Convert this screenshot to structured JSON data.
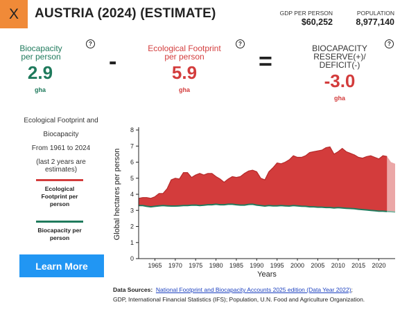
{
  "header": {
    "close_label": "X",
    "title": "AUSTRIA (2024) (ESTIMATE)",
    "gdp_label": "GDP PER PERSON",
    "gdp_value": "$60,252",
    "population_label": "POPULATION",
    "population_value": "8,977,140"
  },
  "metrics": {
    "biocapacity": {
      "label_line1": "Biocapacity",
      "label_line2": "per person",
      "value": "2.9",
      "unit": "gha",
      "help": "?"
    },
    "operator_minus": "-",
    "footprint": {
      "label_line1": "Ecological Footprint",
      "label_line2": "per person",
      "value": "5.9",
      "unit": "gha",
      "help": "?"
    },
    "operator_equals": "=",
    "reserve": {
      "label_line1": "BIOCAPACITY",
      "label_line2": "RESERVE(+)/",
      "label_line3": "DEFICIT(-)",
      "value": "-3.0",
      "unit": "gha",
      "help": "?"
    },
    "colors": {
      "green": "#1f7a5c",
      "red": "#d33c3c"
    }
  },
  "side_panel": {
    "line1": "Ecological Footprint and",
    "line2": "Biocapacity",
    "line3": "From 1961 to 2024",
    "line4": "(last 2 years are estimates)",
    "legend": [
      {
        "line1": "Ecological",
        "line2": "Footprint per",
        "line3": "person",
        "color": "#d33c3c"
      },
      {
        "line1": "Biocapacity per",
        "line2": "person",
        "color": "#1f7a5c"
      }
    ],
    "learn_more": "Learn More",
    "learn_more_color": "#2196f3"
  },
  "chart_data": {
    "type": "area",
    "xlabel": "Years",
    "ylabel": "Global hectares per person",
    "ylim": [
      0,
      8
    ],
    "xlim": [
      1961,
      2024
    ],
    "x_ticks": [
      1965,
      1970,
      1975,
      1980,
      1985,
      1990,
      1995,
      2000,
      2005,
      2010,
      2015,
      2020
    ],
    "y_ticks": [
      0,
      1,
      2,
      3,
      4,
      5,
      6,
      7,
      8
    ],
    "estimate_from_year": 2022,
    "series": [
      {
        "name": "Ecological Footprint per person",
        "color": "#d33c3c",
        "x": [
          1961,
          1962,
          1963,
          1964,
          1965,
          1966,
          1967,
          1968,
          1969,
          1970,
          1971,
          1972,
          1973,
          1974,
          1975,
          1976,
          1977,
          1978,
          1979,
          1980,
          1981,
          1982,
          1983,
          1984,
          1985,
          1986,
          1987,
          1988,
          1989,
          1990,
          1991,
          1992,
          1993,
          1994,
          1995,
          1996,
          1997,
          1998,
          1999,
          2000,
          2001,
          2002,
          2003,
          2004,
          2005,
          2006,
          2007,
          2008,
          2009,
          2010,
          2011,
          2012,
          2013,
          2014,
          2015,
          2016,
          2017,
          2018,
          2019,
          2020,
          2021,
          2022,
          2023,
          2024
        ],
        "values": [
          3.75,
          3.8,
          3.8,
          3.75,
          3.85,
          4.05,
          4.05,
          4.35,
          4.9,
          5.0,
          4.95,
          5.35,
          5.35,
          5.05,
          5.2,
          5.3,
          5.2,
          5.3,
          5.3,
          5.1,
          4.95,
          4.75,
          4.95,
          5.1,
          5.05,
          5.1,
          5.3,
          5.45,
          5.5,
          5.4,
          5.0,
          4.9,
          5.4,
          5.65,
          5.95,
          5.9,
          6.0,
          6.15,
          6.4,
          6.3,
          6.3,
          6.4,
          6.6,
          6.65,
          6.7,
          6.75,
          6.9,
          6.95,
          6.5,
          6.65,
          6.85,
          6.65,
          6.55,
          6.45,
          6.3,
          6.25,
          6.35,
          6.4,
          6.3,
          6.2,
          6.4,
          6.35,
          6.0,
          5.9
        ]
      },
      {
        "name": "Biocapacity per person",
        "color": "#1f7a5c",
        "x": [
          1961,
          1962,
          1963,
          1964,
          1965,
          1966,
          1967,
          1968,
          1969,
          1970,
          1971,
          1972,
          1973,
          1974,
          1975,
          1976,
          1977,
          1978,
          1979,
          1980,
          1981,
          1982,
          1983,
          1984,
          1985,
          1986,
          1987,
          1988,
          1989,
          1990,
          1991,
          1992,
          1993,
          1994,
          1995,
          1996,
          1997,
          1998,
          1999,
          2000,
          2001,
          2002,
          2003,
          2004,
          2005,
          2006,
          2007,
          2008,
          2009,
          2010,
          2011,
          2012,
          2013,
          2014,
          2015,
          2016,
          2017,
          2018,
          2019,
          2020,
          2021,
          2022,
          2023,
          2024
        ],
        "values": [
          3.3,
          3.3,
          3.25,
          3.22,
          3.25,
          3.28,
          3.3,
          3.28,
          3.27,
          3.27,
          3.28,
          3.3,
          3.3,
          3.32,
          3.33,
          3.3,
          3.32,
          3.35,
          3.35,
          3.38,
          3.35,
          3.35,
          3.38,
          3.38,
          3.35,
          3.33,
          3.33,
          3.37,
          3.38,
          3.33,
          3.3,
          3.27,
          3.3,
          3.28,
          3.28,
          3.3,
          3.28,
          3.27,
          3.3,
          3.28,
          3.26,
          3.25,
          3.22,
          3.22,
          3.2,
          3.2,
          3.18,
          3.18,
          3.15,
          3.17,
          3.15,
          3.13,
          3.12,
          3.1,
          3.07,
          3.05,
          3.03,
          3.0,
          2.98,
          2.95,
          2.95,
          2.93,
          2.92,
          2.9
        ]
      }
    ]
  },
  "footer": {
    "sources_label": "Data Sources:",
    "sources_link": "National Footprint and Biocapacity Accounts 2025 edition (Data Year 2022)",
    "sources_after_link": ";",
    "sources_line2": "GDP, International Financial Statistics (IFS); Population, U.N. Food and Agriculture Organization."
  }
}
